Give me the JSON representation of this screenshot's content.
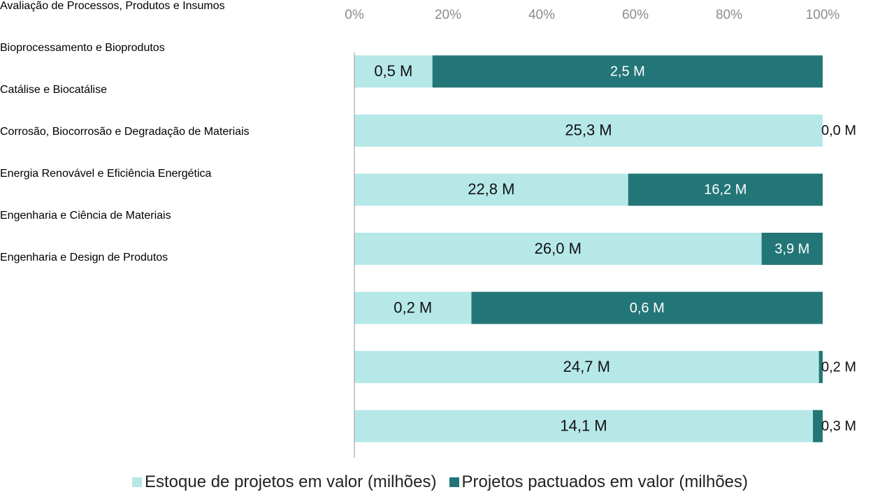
{
  "chart_data": {
    "type": "bar",
    "orientation": "horizontal",
    "stacking": "percent",
    "categories": [
      "Avaliação de Processos, Produtos e Insumos",
      "Bioprocessamento e Bioprodutos",
      "Catálise e Biocatálise",
      "Corrosão, Biocorrosão e Degradação de Materiais",
      "Energia Renovável e Eficiência Energética",
      "Engenharia e Ciência de Materiais",
      "Engenharia e Design de Produtos"
    ],
    "series": [
      {
        "name": "Estoque de projetos em valor (milhões)",
        "color": "#b7e8e8",
        "values": [
          0.5,
          25.3,
          22.8,
          26.0,
          0.2,
          24.7,
          14.1
        ],
        "value_labels": [
          "0,5 M",
          "25,3 M",
          "22,8 M",
          "26,0 M",
          "0,2 M",
          "24,7 M",
          "14,1 M"
        ]
      },
      {
        "name": "Projetos pactuados em valor (milhões)",
        "color": "#237677",
        "values": [
          2.5,
          0.0,
          16.2,
          3.9,
          0.6,
          0.2,
          0.3
        ],
        "value_labels": [
          "2,5 M",
          "0,0 M",
          "16,2 M",
          "3,9 M",
          "0,6 M",
          "0,2 M",
          "0,3 M"
        ]
      }
    ],
    "xlim": [
      0,
      100
    ],
    "xticks": [
      {
        "value": 0,
        "label": "0%"
      },
      {
        "value": 20,
        "label": "20%"
      },
      {
        "value": 40,
        "label": "40%"
      },
      {
        "value": 60,
        "label": "60%"
      },
      {
        "value": 80,
        "label": "80%"
      },
      {
        "value": 100,
        "label": "100%"
      }
    ],
    "legend": "bottom"
  }
}
